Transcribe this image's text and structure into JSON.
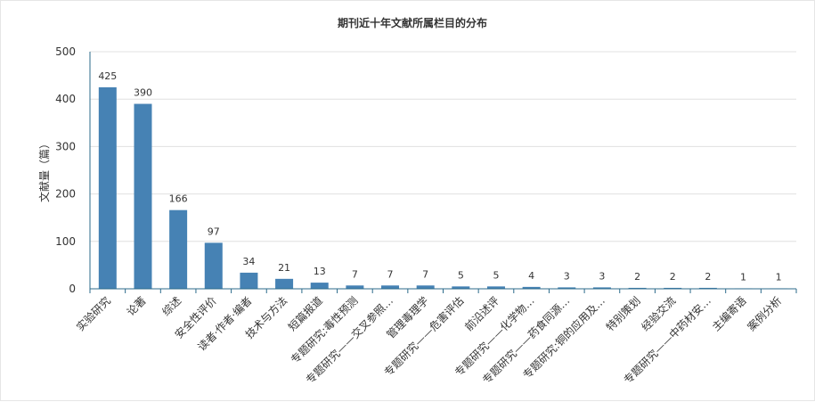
{
  "chart_data": {
    "type": "bar",
    "title": "期刊近十年文献所属栏目的分布",
    "ylabel": "文献量（篇）",
    "xlabel": "",
    "ylim": [
      0,
      500
    ],
    "yticks": [
      0,
      100,
      200,
      300,
      400,
      500
    ],
    "grid": true,
    "color": "#4682b4",
    "categories": [
      "实验研究",
      "论著",
      "综述",
      "安全性评价",
      "读者·作者·编者",
      "技术与方法",
      "短篇报道",
      "专题研究:毒性预测",
      "专题研究——交叉参照…",
      "管理毒理学",
      "专题研究——危害评估",
      "前沿述评",
      "专题研究——化学物…",
      "专题研究——药食同源…",
      "专题研究:铜的应用及…",
      "特别策划",
      "经验交流",
      "专题研究——中药材安…",
      "主编寄语",
      "案例分析"
    ],
    "values": [
      425,
      390,
      166,
      97,
      34,
      21,
      13,
      7,
      7,
      7,
      5,
      5,
      4,
      3,
      3,
      2,
      2,
      2,
      1,
      1
    ]
  }
}
